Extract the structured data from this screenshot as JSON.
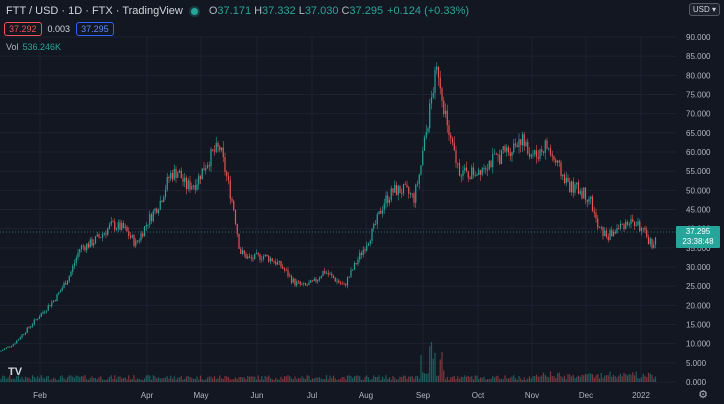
{
  "header": {
    "symbol": "FTT / USD · 1D · FTX · TradingView",
    "open_label": "O",
    "open": "37.171",
    "high_label": "H",
    "high": "37.332",
    "low_label": "L",
    "low": "37.030",
    "close_label": "C",
    "close": "37.295",
    "change": "+0.124 (+0.33%)"
  },
  "quote": {
    "bid": "37.292",
    "spread": "0.003",
    "ask": "37.295"
  },
  "volume": {
    "label": "Vol",
    "value": "536.246K"
  },
  "currency_button": "USD",
  "last_price": {
    "price": "37.295",
    "countdown": "23:38:48"
  },
  "colors": {
    "up": "#26a69a",
    "down": "#ef5350",
    "background": "#131722"
  },
  "icons": {
    "logo": "tradingview-logo-icon",
    "settings": "gear-icon"
  },
  "chart_data": {
    "type": "candlestick",
    "y_ticks": [
      "90.000",
      "85.000",
      "80.000",
      "75.000",
      "70.000",
      "65.000",
      "60.000",
      "55.000",
      "50.000",
      "45.000",
      "40.000",
      "35.000",
      "30.000",
      "25.000",
      "20.000",
      "15.000",
      "10.000",
      "5.000",
      "0.000"
    ],
    "ylim": [
      0,
      90
    ],
    "x_ticks": [
      "Feb",
      "Apr",
      "May",
      "Jun",
      "Jul",
      "Aug",
      "Sep",
      "Oct",
      "Nov",
      "Dec",
      "2022"
    ],
    "price_path": [
      [
        0,
        8
      ],
      [
        14,
        10
      ],
      [
        28,
        14
      ],
      [
        42,
        18
      ],
      [
        56,
        22
      ],
      [
        70,
        28
      ],
      [
        80,
        35
      ],
      [
        90,
        36
      ],
      [
        100,
        38
      ],
      [
        112,
        41
      ],
      [
        124,
        40
      ],
      [
        136,
        36
      ],
      [
        148,
        42
      ],
      [
        160,
        47
      ],
      [
        170,
        54
      ],
      [
        178,
        55
      ],
      [
        186,
        51
      ],
      [
        196,
        52
      ],
      [
        206,
        57
      ],
      [
        214,
        60
      ],
      [
        220,
        61
      ],
      [
        228,
        52
      ],
      [
        234,
        45
      ],
      [
        240,
        34
      ],
      [
        250,
        32
      ],
      [
        262,
        33
      ],
      [
        272,
        32
      ],
      [
        282,
        30
      ],
      [
        294,
        26
      ],
      [
        304,
        25
      ],
      [
        314,
        26
      ],
      [
        324,
        29
      ],
      [
        334,
        27
      ],
      [
        344,
        25
      ],
      [
        354,
        30
      ],
      [
        364,
        35
      ],
      [
        374,
        40
      ],
      [
        384,
        47
      ],
      [
        394,
        50
      ],
      [
        404,
        50
      ],
      [
        414,
        48
      ],
      [
        420,
        55
      ],
      [
        428,
        68
      ],
      [
        434,
        78
      ],
      [
        438,
        82
      ],
      [
        444,
        72
      ],
      [
        450,
        63
      ],
      [
        458,
        56
      ],
      [
        466,
        54
      ],
      [
        476,
        55
      ],
      [
        486,
        57
      ],
      [
        496,
        58
      ],
      [
        504,
        60
      ],
      [
        512,
        61
      ],
      [
        520,
        64
      ],
      [
        528,
        60
      ],
      [
        536,
        59
      ],
      [
        546,
        62
      ],
      [
        552,
        59
      ],
      [
        560,
        55
      ],
      [
        570,
        51
      ],
      [
        580,
        50
      ],
      [
        590,
        48
      ],
      [
        598,
        40
      ],
      [
        608,
        38
      ],
      [
        618,
        40
      ],
      [
        628,
        42
      ],
      [
        638,
        41
      ],
      [
        646,
        38
      ],
      [
        652,
        36
      ],
      [
        657,
        37.3
      ]
    ],
    "volume_note": "Volume bars at bottom; spike ~22 near Sep"
  }
}
